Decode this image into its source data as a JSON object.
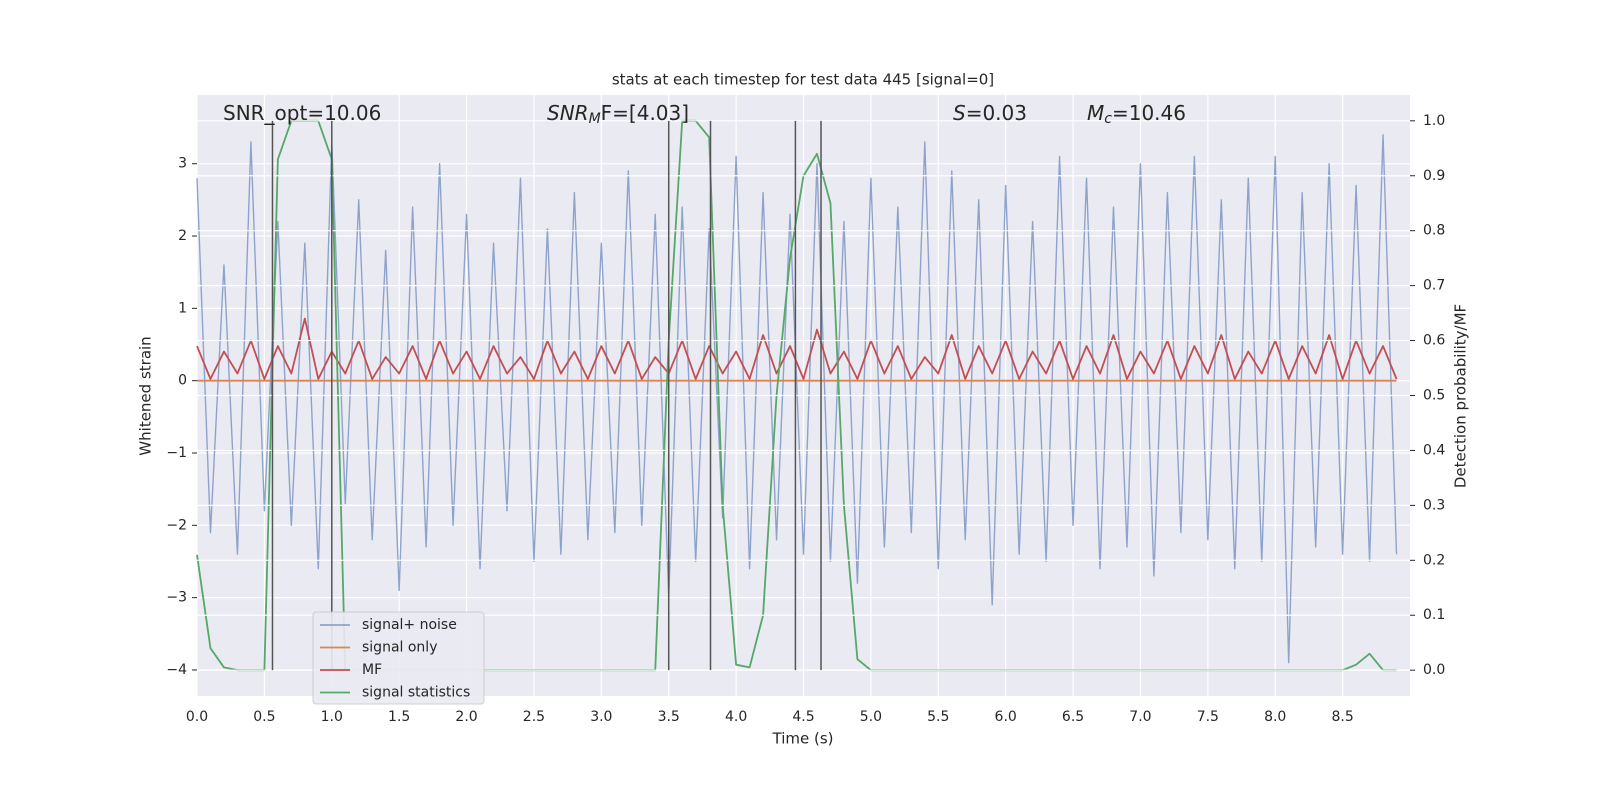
{
  "chart_data": {
    "type": "line",
    "title": "stats at each timestep for test data 445 [signal=0]",
    "xlabel": "Time (s)",
    "ylabel": "Whitened strain",
    "y2label": "Detection probability/MF",
    "annotations": [
      {
        "text": "SNR_opt=10.06"
      },
      {
        "base": "SNR",
        "sub": "M",
        "after": "F=[4.03]"
      },
      {
        "base": "S",
        "after": "=0.03"
      },
      {
        "base": "M",
        "sub": "c",
        "after": "=10.46"
      }
    ],
    "x": [
      0.0,
      0.1,
      0.2,
      0.3,
      0.4,
      0.5,
      0.6,
      0.7,
      0.8,
      0.9,
      1.0,
      1.1,
      1.2,
      1.3,
      1.4,
      1.5,
      1.6,
      1.7,
      1.8,
      1.9,
      2.0,
      2.1,
      2.2,
      2.3,
      2.4,
      2.5,
      2.6,
      2.7,
      2.8,
      2.9,
      3.0,
      3.1,
      3.2,
      3.3,
      3.4,
      3.5,
      3.6,
      3.7,
      3.8,
      3.9,
      4.0,
      4.1,
      4.2,
      4.3,
      4.4,
      4.5,
      4.6,
      4.7,
      4.8,
      4.9,
      5.0,
      5.1,
      5.2,
      5.3,
      5.4,
      5.5,
      5.6,
      5.7,
      5.8,
      5.9,
      6.0,
      6.1,
      6.2,
      6.3,
      6.4,
      6.5,
      6.6,
      6.7,
      6.8,
      6.9,
      7.0,
      7.1,
      7.2,
      7.3,
      7.4,
      7.5,
      7.6,
      7.7,
      7.8,
      7.9,
      8.0,
      8.1,
      8.2,
      8.3,
      8.4,
      8.5,
      8.6,
      8.7,
      8.8,
      8.9
    ],
    "series": [
      {
        "name": "signal+ noise",
        "color": "#8ea3cc",
        "values": [
          2.8,
          -2.1,
          1.6,
          -2.4,
          3.3,
          -1.8,
          2.2,
          -2.0,
          1.9,
          -2.6,
          3.3,
          -1.7,
          2.5,
          -2.2,
          1.8,
          -2.9,
          2.4,
          -2.3,
          3.0,
          -2.0,
          2.3,
          -2.6,
          1.9,
          -1.8,
          2.8,
          -2.5,
          2.1,
          -2.4,
          2.6,
          -2.2,
          1.9,
          -2.1,
          2.9,
          -2.0,
          2.3,
          -3.0,
          2.4,
          -2.5,
          2.1,
          -1.9,
          3.1,
          -2.6,
          2.6,
          -2.2,
          2.3,
          -2.4,
          3.0,
          -2.5,
          2.2,
          -2.8,
          2.8,
          -2.3,
          2.4,
          -2.1,
          3.3,
          -2.6,
          2.9,
          -2.2,
          2.5,
          -3.1,
          2.7,
          -2.4,
          2.2,
          -2.5,
          3.1,
          -2.0,
          2.8,
          -2.6,
          2.4,
          -2.3,
          3.0,
          -2.7,
          2.6,
          -2.1,
          3.1,
          -2.2,
          2.5,
          -2.6,
          2.8,
          -2.5,
          3.1,
          -3.9,
          2.6,
          -2.3,
          3.0,
          -2.4,
          2.7,
          -2.5,
          3.4,
          -2.4
        ]
      },
      {
        "name": "signal only",
        "color": "#dd8452",
        "values": [
          0,
          0,
          0,
          0,
          0,
          0,
          0,
          0,
          0,
          0,
          0,
          0,
          0,
          0,
          0,
          0,
          0,
          0,
          0,
          0,
          0,
          0,
          0,
          0,
          0,
          0,
          0,
          0,
          0,
          0,
          0,
          0,
          0,
          0,
          0,
          0,
          0,
          0,
          0,
          0,
          0,
          0,
          0,
          0,
          0,
          0,
          0,
          0,
          0,
          0,
          0,
          0,
          0,
          0,
          0,
          0,
          0,
          0,
          0,
          0,
          0,
          0,
          0,
          0,
          0,
          0,
          0,
          0,
          0,
          0,
          0,
          0,
          0,
          0,
          0,
          0,
          0,
          0,
          0,
          0,
          0,
          0,
          0,
          0,
          0,
          0,
          0,
          0,
          0,
          0
        ]
      },
      {
        "name": "MF",
        "color": "#c44e52",
        "axis": "y2",
        "values": [
          0.59,
          0.53,
          0.58,
          0.54,
          0.6,
          0.53,
          0.59,
          0.54,
          0.64,
          0.53,
          0.58,
          0.54,
          0.6,
          0.53,
          0.57,
          0.54,
          0.59,
          0.53,
          0.6,
          0.54,
          0.58,
          0.53,
          0.59,
          0.54,
          0.57,
          0.53,
          0.6,
          0.54,
          0.58,
          0.53,
          0.59,
          0.54,
          0.6,
          0.53,
          0.57,
          0.54,
          0.6,
          0.53,
          0.59,
          0.54,
          0.58,
          0.53,
          0.61,
          0.54,
          0.59,
          0.53,
          0.62,
          0.54,
          0.58,
          0.53,
          0.6,
          0.54,
          0.59,
          0.53,
          0.57,
          0.54,
          0.61,
          0.53,
          0.59,
          0.54,
          0.6,
          0.53,
          0.58,
          0.54,
          0.6,
          0.53,
          0.59,
          0.54,
          0.61,
          0.53,
          0.58,
          0.54,
          0.6,
          0.53,
          0.59,
          0.54,
          0.61,
          0.53,
          0.58,
          0.54,
          0.6,
          0.53,
          0.59,
          0.54,
          0.61,
          0.53,
          0.6,
          0.54,
          0.59,
          0.53
        ]
      },
      {
        "name": "signal statistics",
        "color": "#55a868",
        "axis": "y2",
        "values": [
          0.21,
          0.04,
          0.005,
          0,
          0,
          0,
          0.93,
          1.0,
          1.0,
          1.0,
          0.93,
          0,
          0,
          0,
          0,
          0,
          0,
          0,
          0,
          0,
          0,
          0,
          0,
          0,
          0,
          0,
          0,
          0,
          0,
          0,
          0,
          0,
          0,
          0,
          0,
          0.6,
          1.0,
          1.0,
          0.97,
          0.3,
          0.01,
          0.005,
          0.1,
          0.5,
          0.75,
          0.9,
          0.94,
          0.85,
          0.3,
          0.02,
          0,
          0,
          0,
          0,
          0,
          0,
          0,
          0,
          0,
          0,
          0,
          0,
          0,
          0,
          0,
          0,
          0,
          0,
          0,
          0,
          0,
          0,
          0,
          0,
          0,
          0,
          0,
          0,
          0,
          0,
          0,
          0,
          0,
          0,
          0,
          0,
          0.01,
          0.03,
          0,
          0
        ]
      }
    ],
    "vlines": [
      0.56,
      1.0,
      3.5,
      3.81,
      4.44,
      4.63
    ],
    "vline_color": "#555555",
    "xlim": [
      0,
      9.0
    ],
    "ylim": [
      -4.36,
      3.95
    ],
    "y2lim": [
      -0.047,
      1.047
    ],
    "xticks": [
      {
        "value": 0,
        "label": "0.0"
      },
      0.5,
      {
        "value": 1,
        "label": "1.0"
      },
      1.5,
      {
        "value": 2,
        "label": "2.0"
      },
      2.5,
      {
        "value": 3,
        "label": "3.0"
      },
      3.5,
      {
        "value": 4,
        "label": "4.0"
      },
      4.5,
      {
        "value": 5,
        "label": "5.0"
      },
      5.5,
      {
        "value": 6,
        "label": "6.0"
      },
      6.5,
      {
        "value": 7,
        "label": "7.0"
      },
      7.5,
      {
        "value": 8,
        "label": "8.0"
      },
      8.5
    ],
    "yticks": [
      {
        "value": -4,
        "label": "−4"
      },
      {
        "value": -3,
        "label": "−3"
      },
      {
        "value": -2,
        "label": "−2"
      },
      {
        "value": -1,
        "label": "−1"
      },
      0,
      1,
      2,
      3
    ],
    "y2ticks": [
      {
        "value": 0,
        "label": "0.0"
      },
      0.1,
      0.2,
      0.3,
      0.4,
      0.5,
      0.6,
      0.7,
      0.8,
      0.9,
      {
        "value": 1,
        "label": "1.0"
      }
    ],
    "grid": true,
    "legend": "lower left"
  }
}
